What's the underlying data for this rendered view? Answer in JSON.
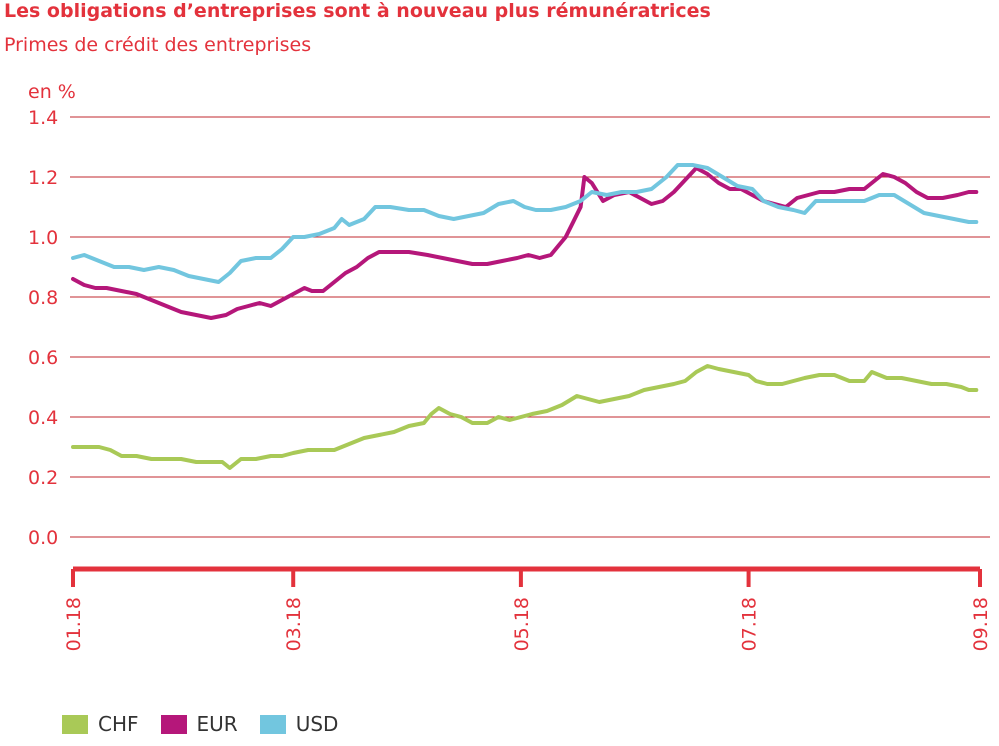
{
  "title": "Les obligations d’entreprises sont à nouveau plus rémunératrices",
  "subtitle": "Primes de crédit des entreprises",
  "colors": {
    "accent": "#e3323c",
    "grid": "#c0282f",
    "CHF": "#a9c957",
    "EUR": "#b5177a",
    "USD": "#72c6df"
  },
  "chart_data": {
    "type": "line",
    "ylabel": "en %",
    "ylim": [
      0.0,
      1.4
    ],
    "yticks": [
      0.0,
      0.2,
      0.4,
      0.6,
      0.8,
      1.0,
      1.2,
      1.4
    ],
    "ytick_labels": [
      "0.0",
      "0.2",
      "0.4",
      "0.6",
      "0.8",
      "1.0",
      "1.2",
      "1.4"
    ],
    "xlim": [
      "2018-01-01",
      "2018-09-01"
    ],
    "xticks": [
      "2018-01-01",
      "2018-03-01",
      "2018-05-01",
      "2018-07-01",
      "2018-09-01"
    ],
    "xtick_labels": [
      "01.18",
      "03.18",
      "05.18",
      "07.18",
      "09.18"
    ],
    "grid": true,
    "legend": "bottom-left",
    "series": [
      {
        "name": "CHF",
        "points": [
          [
            "2018-01-01",
            0.3
          ],
          [
            "2018-01-04",
            0.3
          ],
          [
            "2018-01-08",
            0.3
          ],
          [
            "2018-01-11",
            0.29
          ],
          [
            "2018-01-14",
            0.27
          ],
          [
            "2018-01-18",
            0.27
          ],
          [
            "2018-01-22",
            0.26
          ],
          [
            "2018-01-26",
            0.26
          ],
          [
            "2018-01-30",
            0.26
          ],
          [
            "2018-02-03",
            0.25
          ],
          [
            "2018-02-07",
            0.25
          ],
          [
            "2018-02-10",
            0.25
          ],
          [
            "2018-02-12",
            0.23
          ],
          [
            "2018-02-15",
            0.26
          ],
          [
            "2018-02-19",
            0.26
          ],
          [
            "2018-02-23",
            0.27
          ],
          [
            "2018-02-26",
            0.27
          ],
          [
            "2018-03-01",
            0.28
          ],
          [
            "2018-03-05",
            0.29
          ],
          [
            "2018-03-09",
            0.29
          ],
          [
            "2018-03-12",
            0.29
          ],
          [
            "2018-03-16",
            0.31
          ],
          [
            "2018-03-20",
            0.33
          ],
          [
            "2018-03-24",
            0.34
          ],
          [
            "2018-03-28",
            0.35
          ],
          [
            "2018-04-01",
            0.37
          ],
          [
            "2018-04-05",
            0.38
          ],
          [
            "2018-04-07",
            0.41
          ],
          [
            "2018-04-09",
            0.43
          ],
          [
            "2018-04-12",
            0.41
          ],
          [
            "2018-04-15",
            0.4
          ],
          [
            "2018-04-18",
            0.38
          ],
          [
            "2018-04-22",
            0.38
          ],
          [
            "2018-04-25",
            0.4
          ],
          [
            "2018-04-28",
            0.39
          ],
          [
            "2018-05-01",
            0.4
          ],
          [
            "2018-05-04",
            0.41
          ],
          [
            "2018-05-08",
            0.42
          ],
          [
            "2018-05-12",
            0.44
          ],
          [
            "2018-05-16",
            0.47
          ],
          [
            "2018-05-19",
            0.46
          ],
          [
            "2018-05-22",
            0.45
          ],
          [
            "2018-05-26",
            0.46
          ],
          [
            "2018-05-30",
            0.47
          ],
          [
            "2018-06-03",
            0.49
          ],
          [
            "2018-06-07",
            0.5
          ],
          [
            "2018-06-11",
            0.51
          ],
          [
            "2018-06-14",
            0.52
          ],
          [
            "2018-06-17",
            0.55
          ],
          [
            "2018-06-20",
            0.57
          ],
          [
            "2018-06-23",
            0.56
          ],
          [
            "2018-06-27",
            0.55
          ],
          [
            "2018-07-01",
            0.54
          ],
          [
            "2018-07-03",
            0.52
          ],
          [
            "2018-07-06",
            0.51
          ],
          [
            "2018-07-10",
            0.51
          ],
          [
            "2018-07-13",
            0.52
          ],
          [
            "2018-07-16",
            0.53
          ],
          [
            "2018-07-20",
            0.54
          ],
          [
            "2018-07-24",
            0.54
          ],
          [
            "2018-07-28",
            0.52
          ],
          [
            "2018-08-01",
            0.52
          ],
          [
            "2018-08-03",
            0.55
          ],
          [
            "2018-08-07",
            0.53
          ],
          [
            "2018-08-11",
            0.53
          ],
          [
            "2018-08-15",
            0.52
          ],
          [
            "2018-08-19",
            0.51
          ],
          [
            "2018-08-23",
            0.51
          ],
          [
            "2018-08-27",
            0.5
          ],
          [
            "2018-08-29",
            0.49
          ],
          [
            "2018-08-31",
            0.49
          ]
        ]
      },
      {
        "name": "EUR",
        "points": [
          [
            "2018-01-01",
            0.86
          ],
          [
            "2018-01-04",
            0.84
          ],
          [
            "2018-01-07",
            0.83
          ],
          [
            "2018-01-10",
            0.83
          ],
          [
            "2018-01-14",
            0.82
          ],
          [
            "2018-01-18",
            0.81
          ],
          [
            "2018-01-22",
            0.79
          ],
          [
            "2018-01-26",
            0.77
          ],
          [
            "2018-01-30",
            0.75
          ],
          [
            "2018-02-03",
            0.74
          ],
          [
            "2018-02-07",
            0.73
          ],
          [
            "2018-02-11",
            0.74
          ],
          [
            "2018-02-14",
            0.76
          ],
          [
            "2018-02-17",
            0.77
          ],
          [
            "2018-02-20",
            0.78
          ],
          [
            "2018-02-23",
            0.77
          ],
          [
            "2018-02-26",
            0.79
          ],
          [
            "2018-03-01",
            0.81
          ],
          [
            "2018-03-04",
            0.83
          ],
          [
            "2018-03-06",
            0.82
          ],
          [
            "2018-03-09",
            0.82
          ],
          [
            "2018-03-12",
            0.85
          ],
          [
            "2018-03-15",
            0.88
          ],
          [
            "2018-03-18",
            0.9
          ],
          [
            "2018-03-21",
            0.93
          ],
          [
            "2018-03-24",
            0.95
          ],
          [
            "2018-03-28",
            0.95
          ],
          [
            "2018-04-01",
            0.95
          ],
          [
            "2018-04-06",
            0.94
          ],
          [
            "2018-04-10",
            0.93
          ],
          [
            "2018-04-14",
            0.92
          ],
          [
            "2018-04-18",
            0.91
          ],
          [
            "2018-04-22",
            0.91
          ],
          [
            "2018-04-26",
            0.92
          ],
          [
            "2018-04-30",
            0.93
          ],
          [
            "2018-05-03",
            0.94
          ],
          [
            "2018-05-06",
            0.93
          ],
          [
            "2018-05-09",
            0.94
          ],
          [
            "2018-05-11",
            0.97
          ],
          [
            "2018-05-13",
            1.0
          ],
          [
            "2018-05-15",
            1.05
          ],
          [
            "2018-05-17",
            1.1
          ],
          [
            "2018-05-18",
            1.2
          ],
          [
            "2018-05-20",
            1.18
          ],
          [
            "2018-05-23",
            1.12
          ],
          [
            "2018-05-26",
            1.14
          ],
          [
            "2018-05-30",
            1.15
          ],
          [
            "2018-06-02",
            1.13
          ],
          [
            "2018-06-05",
            1.11
          ],
          [
            "2018-06-08",
            1.12
          ],
          [
            "2018-06-11",
            1.15
          ],
          [
            "2018-06-14",
            1.19
          ],
          [
            "2018-06-17",
            1.23
          ],
          [
            "2018-06-20",
            1.21
          ],
          [
            "2018-06-23",
            1.18
          ],
          [
            "2018-06-26",
            1.16
          ],
          [
            "2018-06-29",
            1.16
          ],
          [
            "2018-07-02",
            1.14
          ],
          [
            "2018-07-05",
            1.12
          ],
          [
            "2018-07-08",
            1.11
          ],
          [
            "2018-07-11",
            1.1
          ],
          [
            "2018-07-14",
            1.13
          ],
          [
            "2018-07-17",
            1.14
          ],
          [
            "2018-07-20",
            1.15
          ],
          [
            "2018-07-24",
            1.15
          ],
          [
            "2018-07-28",
            1.16
          ],
          [
            "2018-08-01",
            1.16
          ],
          [
            "2018-08-04",
            1.19
          ],
          [
            "2018-08-06",
            1.21
          ],
          [
            "2018-08-09",
            1.2
          ],
          [
            "2018-08-12",
            1.18
          ],
          [
            "2018-08-15",
            1.15
          ],
          [
            "2018-08-18",
            1.13
          ],
          [
            "2018-08-22",
            1.13
          ],
          [
            "2018-08-26",
            1.14
          ],
          [
            "2018-08-29",
            1.15
          ],
          [
            "2018-08-31",
            1.15
          ]
        ]
      },
      {
        "name": "USD",
        "points": [
          [
            "2018-01-01",
            0.93
          ],
          [
            "2018-01-04",
            0.94
          ],
          [
            "2018-01-08",
            0.92
          ],
          [
            "2018-01-12",
            0.9
          ],
          [
            "2018-01-16",
            0.9
          ],
          [
            "2018-01-20",
            0.89
          ],
          [
            "2018-01-24",
            0.9
          ],
          [
            "2018-01-28",
            0.89
          ],
          [
            "2018-02-01",
            0.87
          ],
          [
            "2018-02-05",
            0.86
          ],
          [
            "2018-02-09",
            0.85
          ],
          [
            "2018-02-12",
            0.88
          ],
          [
            "2018-02-15",
            0.92
          ],
          [
            "2018-02-19",
            0.93
          ],
          [
            "2018-02-23",
            0.93
          ],
          [
            "2018-02-26",
            0.96
          ],
          [
            "2018-03-01",
            1.0
          ],
          [
            "2018-03-04",
            1.0
          ],
          [
            "2018-03-08",
            1.01
          ],
          [
            "2018-03-12",
            1.03
          ],
          [
            "2018-03-14",
            1.06
          ],
          [
            "2018-03-16",
            1.04
          ],
          [
            "2018-03-20",
            1.06
          ],
          [
            "2018-03-23",
            1.1
          ],
          [
            "2018-03-27",
            1.1
          ],
          [
            "2018-04-01",
            1.09
          ],
          [
            "2018-04-05",
            1.09
          ],
          [
            "2018-04-09",
            1.07
          ],
          [
            "2018-04-13",
            1.06
          ],
          [
            "2018-04-17",
            1.07
          ],
          [
            "2018-04-21",
            1.08
          ],
          [
            "2018-04-25",
            1.11
          ],
          [
            "2018-04-29",
            1.12
          ],
          [
            "2018-05-02",
            1.1
          ],
          [
            "2018-05-05",
            1.09
          ],
          [
            "2018-05-09",
            1.09
          ],
          [
            "2018-05-13",
            1.1
          ],
          [
            "2018-05-17",
            1.12
          ],
          [
            "2018-05-20",
            1.15
          ],
          [
            "2018-05-24",
            1.14
          ],
          [
            "2018-05-28",
            1.15
          ],
          [
            "2018-06-01",
            1.15
          ],
          [
            "2018-06-05",
            1.16
          ],
          [
            "2018-06-09",
            1.2
          ],
          [
            "2018-06-12",
            1.24
          ],
          [
            "2018-06-16",
            1.24
          ],
          [
            "2018-06-20",
            1.23
          ],
          [
            "2018-06-24",
            1.2
          ],
          [
            "2018-06-28",
            1.17
          ],
          [
            "2018-07-02",
            1.16
          ],
          [
            "2018-07-05",
            1.12
          ],
          [
            "2018-07-09",
            1.1
          ],
          [
            "2018-07-13",
            1.09
          ],
          [
            "2018-07-16",
            1.08
          ],
          [
            "2018-07-19",
            1.12
          ],
          [
            "2018-07-23",
            1.12
          ],
          [
            "2018-07-27",
            1.12
          ],
          [
            "2018-08-01",
            1.12
          ],
          [
            "2018-08-05",
            1.14
          ],
          [
            "2018-08-09",
            1.14
          ],
          [
            "2018-08-13",
            1.11
          ],
          [
            "2018-08-17",
            1.08
          ],
          [
            "2018-08-21",
            1.07
          ],
          [
            "2018-08-25",
            1.06
          ],
          [
            "2018-08-29",
            1.05
          ],
          [
            "2018-08-31",
            1.05
          ]
        ]
      }
    ]
  }
}
